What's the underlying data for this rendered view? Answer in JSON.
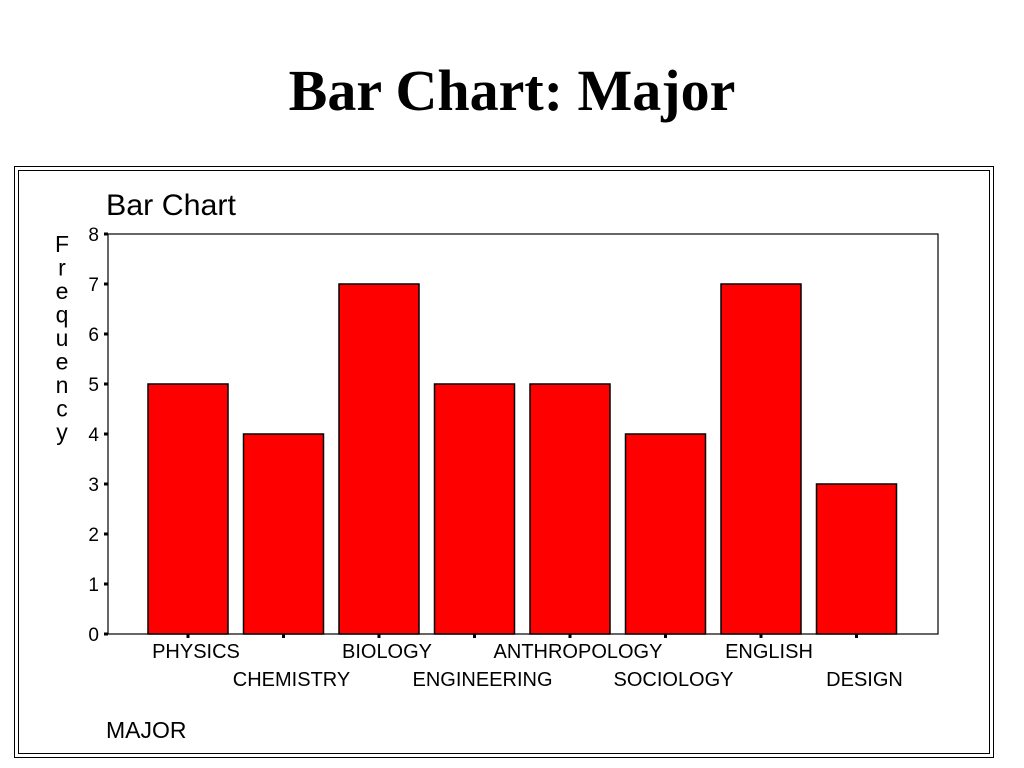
{
  "slide_title": "Bar Chart: Major",
  "chart_data": {
    "type": "bar",
    "title": "Bar Chart",
    "xlabel": "MAJOR",
    "ylabel": "Frequency",
    "categories": [
      "PHYSICS",
      "CHEMISTRY",
      "BIOLOGY",
      "ENGINEERING",
      "ANTHROPOLOGY",
      "SOCIOLOGY",
      "ENGLISH",
      "DESIGN"
    ],
    "values": [
      5,
      4,
      7,
      5,
      5,
      4,
      7,
      3
    ],
    "ylim": [
      0,
      8
    ],
    "yticks": [
      "0",
      "1",
      "2",
      "3",
      "4",
      "5",
      "6",
      "7",
      "8"
    ],
    "grid": false,
    "legend": "none",
    "bar_color": "#ff0000",
    "edge_color": "#000000"
  }
}
